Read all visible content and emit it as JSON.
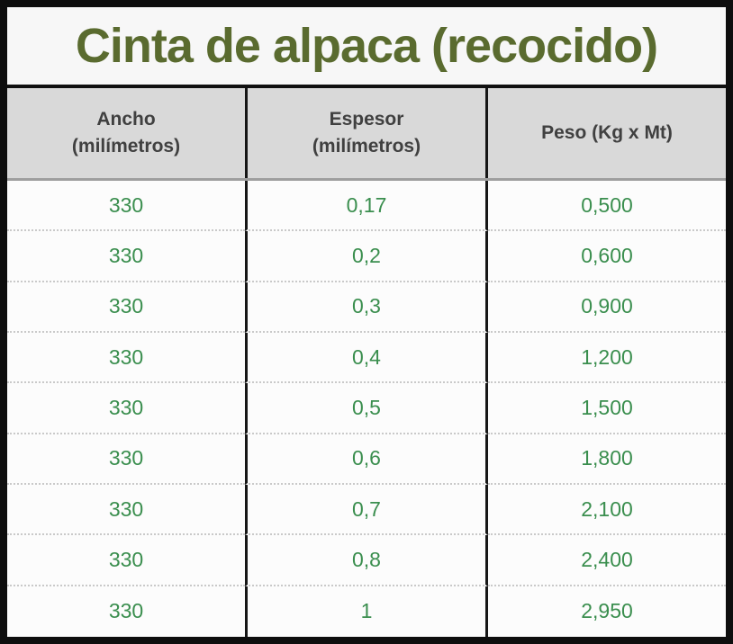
{
  "title": "Cinta de alpaca (recocido)",
  "table": {
    "headers": [
      {
        "label": "Ancho\n(milímetros)"
      },
      {
        "label": "Espesor\n(milímetros)"
      },
      {
        "label": "Peso (Kg x Mt)"
      }
    ],
    "rows": [
      [
        "330",
        "0,17",
        "0,500"
      ],
      [
        "330",
        "0,2",
        "0,600"
      ],
      [
        "330",
        "0,3",
        "0,900"
      ],
      [
        "330",
        "0,4",
        "1,200"
      ],
      [
        "330",
        "0,5",
        "1,500"
      ],
      [
        "330",
        "0,6",
        "1,800"
      ],
      [
        "330",
        "0,7",
        "2,100"
      ],
      [
        "330",
        "0,8",
        "2,400"
      ],
      [
        "330",
        "1",
        "2,950"
      ]
    ]
  },
  "colors": {
    "frame_border": "#0e0e0e",
    "title_bg": "#f7f7f7",
    "title_text": "#5a6b2f",
    "header_bg": "#d9d9d9",
    "header_text": "#404040",
    "header_bottom_line": "#9e9e9e",
    "data_bg": "#fcfcfc",
    "data_text": "#3a8e4e",
    "row_divider_dotted": "#c9c9c9",
    "column_divider": "#161616"
  },
  "chart_data": {
    "type": "table",
    "title": "Cinta de alpaca (recocido)",
    "columns": [
      "Ancho (milímetros)",
      "Espesor (milímetros)",
      "Peso (Kg x Mt)"
    ],
    "rows": [
      [
        330,
        0.17,
        0.5
      ],
      [
        330,
        0.2,
        0.6
      ],
      [
        330,
        0.3,
        0.9
      ],
      [
        330,
        0.4,
        1.2
      ],
      [
        330,
        0.5,
        1.5
      ],
      [
        330,
        0.6,
        1.8
      ],
      [
        330,
        0.7,
        2.1
      ],
      [
        330,
        0.8,
        2.4
      ],
      [
        330,
        1.0,
        2.95
      ]
    ]
  }
}
